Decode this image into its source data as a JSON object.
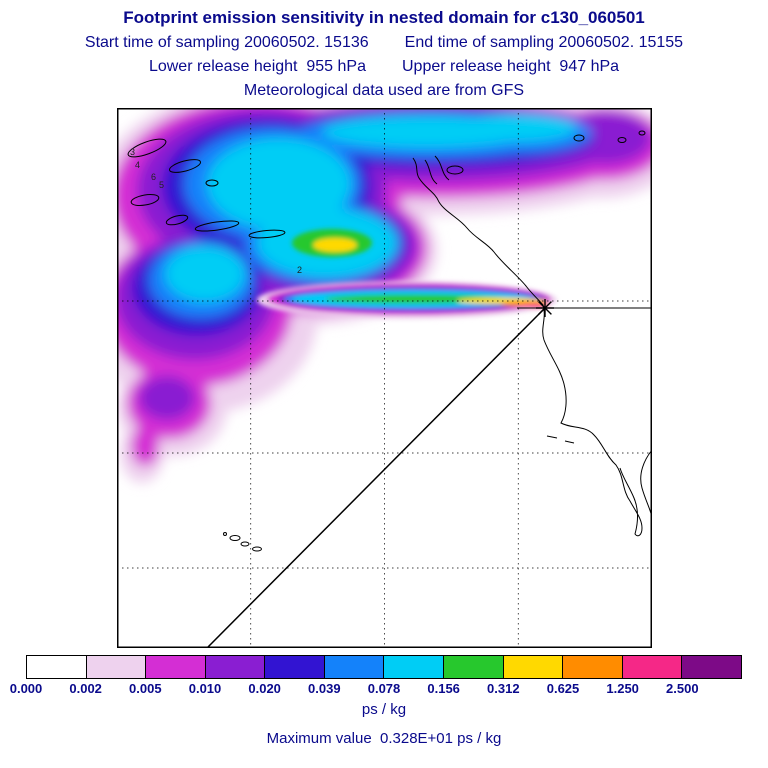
{
  "header": {
    "title": "Footprint emission sensitivity in nested domain for c130_060501",
    "start_time": "Start time of sampling 20060502. 15136",
    "end_time": "End time of sampling 20060502. 15155",
    "lower_release": "Lower release height  955 hPa",
    "upper_release": "Upper release height  947 hPa",
    "met_data": "Meteorological data used are from GFS"
  },
  "footer": {
    "units_label": "ps / kg",
    "max_value_label": "Maximum value  0.328E+01 ps / kg"
  },
  "chart_data": {
    "type": "heatmap",
    "title": "Footprint emission sensitivity in nested domain for c130_060501",
    "variable": "footprint emission sensitivity",
    "units": "ps / kg",
    "maximum_value": "0.328E+01 ps / kg",
    "sampling": {
      "start": "20060502. 15136",
      "end": "20060502. 15155"
    },
    "release_heights": {
      "lower": "955 hPa",
      "upper": "947 hPa"
    },
    "met_source": "GFS",
    "colorbar": {
      "labels": [
        "0.000",
        "0.002",
        "0.005",
        "0.010",
        "0.020",
        "0.039",
        "0.078",
        "0.156",
        "0.312",
        "0.625",
        "1.250",
        "2.500"
      ],
      "levels": [
        0.0,
        0.002,
        0.005,
        0.01,
        0.02,
        0.039,
        0.078,
        0.156,
        0.312,
        0.625,
        1.25,
        2.5
      ],
      "colors": [
        "#ffffff",
        "#eed2ee",
        "#d42ed4",
        "#8a1ed2",
        "#3214d2",
        "#1482fa",
        "#00cdf5",
        "#27c82d",
        "#ffd900",
        "#ff8c00",
        "#f52887",
        "#7d0a87"
      ],
      "units_label": "ps / kg",
      "note": "each label marks the left boundary of its color box; last box is > 2.500"
    },
    "map_contour_labels": [
      "3",
      "4",
      "6",
      "5",
      "2"
    ],
    "legend_position": "bottom"
  }
}
